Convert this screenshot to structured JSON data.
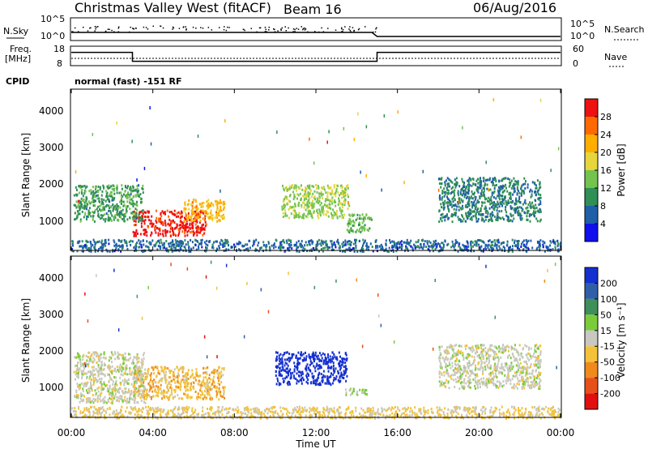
{
  "header": {
    "title": "Christmas Valley West (fitACF)",
    "beam": "Beam 16",
    "date": "06/Aug/2016"
  },
  "panels": {
    "nsky_label": "N.Sky",
    "nsearch_label": "N.Search",
    "nsky_ticks": [
      "10^5",
      "10^0"
    ],
    "nsearch_ticks": [
      "10^5",
      "10^0"
    ],
    "freq_label_1": "Freq.",
    "freq_label_2": "[MHz]",
    "freq_ticks": [
      "18",
      "8"
    ],
    "nave_label": "Nave",
    "nave_ticks": [
      "60",
      "0"
    ],
    "cpid_label": "CPID",
    "cpid_text": "normal (fast) -151 RF"
  },
  "xaxis": {
    "label": "Time UT",
    "ticks": [
      "00:00",
      "04:00",
      "08:00",
      "12:00",
      "16:00",
      "20:00",
      "00:00"
    ]
  },
  "power_panel": {
    "ylabel": "Slant Range [km]",
    "yticks": [
      "4000",
      "3000",
      "2000",
      "1000"
    ],
    "colorbar_label": "Power [dB]",
    "colorbar_ticks": [
      "28",
      "24",
      "20",
      "16",
      "12",
      "8",
      "4"
    ],
    "colorbar_colors": [
      "#ee1111",
      "#ff6a00",
      "#ffae00",
      "#e6d63c",
      "#74c34e",
      "#2f8f54",
      "#1f5fa8",
      "#1010ee"
    ]
  },
  "velocity_panel": {
    "ylabel": "Slant Range [km]",
    "yticks": [
      "4000",
      "3000",
      "2000",
      "1000"
    ],
    "colorbar_label": "Velocity [m s⁻¹]",
    "colorbar_ticks": [
      "200",
      "100",
      "50",
      "15",
      "-15",
      "-50",
      "-100",
      "-200"
    ],
    "colorbar_colors": [
      "#1530d0",
      "#2f5fa8",
      "#3f8f5a",
      "#7acc3c",
      "#c8c8c0",
      "#f3c23a",
      "#f08a1c",
      "#e8501a",
      "#e01010"
    ]
  },
  "chart_data": [
    {
      "type": "heatmap",
      "title": "Christmas Valley West (fitACF)",
      "quantity": "Power",
      "units": "dB",
      "xlabel": "Time UT",
      "ylabel": "Slant Range [km]",
      "xlim": [
        "00:00",
        "24:00"
      ],
      "ylim": [
        180,
        4600
      ],
      "clim": [
        0,
        30
      ],
      "regions": [
        {
          "t_start": 3.0,
          "t_end": 6.6,
          "r_min": 600,
          "r_max": 1300,
          "value": 28
        },
        {
          "t_start": 5.5,
          "t_end": 7.5,
          "r_min": 1000,
          "r_max": 1600,
          "value": 20
        },
        {
          "t_start": 0.1,
          "t_end": 3.5,
          "r_min": 1000,
          "r_max": 2000,
          "value": 10
        },
        {
          "t_start": 10.3,
          "t_end": 13.6,
          "r_min": 1100,
          "r_max": 2000,
          "value": 14
        },
        {
          "t_start": 13.5,
          "t_end": 14.7,
          "r_min": 700,
          "r_max": 1200,
          "value": 12
        },
        {
          "t_start": 18.0,
          "t_end": 23.0,
          "r_min": 1000,
          "r_max": 2200,
          "value": 8
        },
        {
          "t_start": 0.0,
          "t_end": 24.0,
          "r_min": 180,
          "r_max": 500,
          "value": 6
        }
      ]
    },
    {
      "type": "heatmap",
      "title": "Christmas Valley West (fitACF)",
      "quantity": "Velocity",
      "units": "m s⁻¹",
      "xlabel": "Time UT",
      "ylabel": "Slant Range [km]",
      "xlim": [
        "00:00",
        "24:00"
      ],
      "ylim": [
        180,
        4600
      ],
      "clim": [
        -200,
        200
      ],
      "regions": [
        {
          "t_start": 3.0,
          "t_end": 7.5,
          "r_min": 700,
          "r_max": 1600,
          "value": -50
        },
        {
          "t_start": 10.0,
          "t_end": 13.5,
          "r_min": 1100,
          "r_max": 2000,
          "value": 200
        },
        {
          "t_start": 13.4,
          "t_end": 14.5,
          "r_min": 800,
          "r_max": 1000,
          "value": 30
        },
        {
          "t_start": 0.1,
          "t_end": 3.6,
          "r_min": 600,
          "r_max": 2000,
          "value": 0
        },
        {
          "t_start": 18.0,
          "t_end": 23.0,
          "r_min": 1000,
          "r_max": 2200,
          "value": 0
        },
        {
          "t_start": 0.0,
          "t_end": 24.0,
          "r_min": 180,
          "r_max": 500,
          "value": -30
        }
      ]
    },
    {
      "type": "line",
      "title": "Freq. [MHz]",
      "ylim": [
        8,
        18
      ],
      "x": [
        "00:00",
        "03:00",
        "15:00",
        "24:00"
      ],
      "values": [
        15,
        10,
        15,
        15
      ]
    }
  ]
}
